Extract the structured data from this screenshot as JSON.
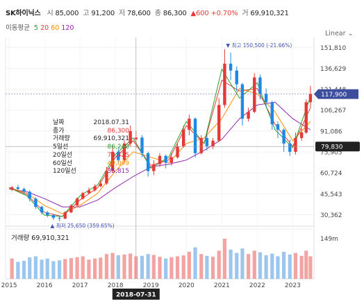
{
  "header": {
    "name": "SK하이닉스",
    "open_label": "시",
    "open": "85,000",
    "high_label": "고",
    "high": "91,200",
    "low_label": "저",
    "low": "78,600",
    "close_label": "종",
    "close": "86,300",
    "change": "▲600",
    "change_pct": "+0.70%",
    "volume_label": "거",
    "volume": "69,910,321"
  },
  "ma": {
    "label": "이동평균",
    "items": [
      {
        "label": "5",
        "color": "#2ca02c"
      },
      {
        "label": "20",
        "color": "#e53935"
      },
      {
        "label": "60",
        "color": "#fb8c00"
      },
      {
        "label": "120",
        "color": "#8e24aa"
      }
    ]
  },
  "scale_mode": "Linear",
  "tooltip": {
    "rows": [
      {
        "label": "날짜",
        "value": "2018.07.31",
        "color": "#222222"
      },
      {
        "label": "종가",
        "value": "86,300",
        "color": "#e53935"
      },
      {
        "label": "거래량",
        "value": "69,910,321",
        "color": "#222222"
      },
      {
        "label": "5일선",
        "value": "86,240",
        "color": "#2ca02c"
      },
      {
        "label": "20일선",
        "value": "70,425",
        "color": "#e53935"
      },
      {
        "label": "60일선",
        "value": "49,099",
        "color": "#fb8c00"
      },
      {
        "label": "120일선",
        "value": "35,815",
        "color": "#8e24aa"
      }
    ]
  },
  "volume_panel": {
    "label": "거래량",
    "value": "69,910,321"
  },
  "colors": {
    "up": "#e53935",
    "down": "#1e88e5",
    "ma5": "#2ca02c",
    "ma20": "#e53935",
    "ma60": "#fb8c00",
    "ma120": "#8e24aa"
  },
  "chart_data": {
    "type": "candlestick",
    "price_axis_ticks": [
      151810,
      136629,
      121448,
      106267,
      91086,
      75905,
      60724,
      45543,
      30362
    ],
    "price_axis_labels": [
      "151,810",
      "136,629",
      "121,448",
      "106,267",
      "91,086",
      "75,905",
      "60,724",
      "45,543",
      "30,362"
    ],
    "ylim": [
      22000,
      158000
    ],
    "x_labels": [
      "2015",
      "2016",
      "2017",
      "2018",
      "2019",
      "2020",
      "2021",
      "2022",
      "2023"
    ],
    "xlim": [
      2014.9,
      2023.6
    ],
    "current_price": {
      "value": 117900,
      "label": "117,900"
    },
    "crosshair": {
      "value": 79830,
      "label": "79,830",
      "date": "2018-07-31",
      "x": 2018.58
    },
    "high_marker": {
      "label": "▼ 최고 150,500 (-21.66%)",
      "x": 2021.12,
      "value": 150500
    },
    "low_marker": {
      "label": "▲ 최저 25,650 (359.65%)",
      "x": 2016.4,
      "value": 25650
    },
    "volume_axis_label": "149m",
    "volume_max": 149,
    "candles": [
      {
        "t": 2015.08,
        "o": 48600,
        "c": 50200,
        "h": 51200,
        "l": 47500
      },
      {
        "t": 2015.25,
        "o": 50200,
        "c": 49000,
        "h": 52000,
        "l": 48000
      },
      {
        "t": 2015.42,
        "o": 49000,
        "c": 47000,
        "h": 50000,
        "l": 45000
      },
      {
        "t": 2015.58,
        "o": 47000,
        "c": 42000,
        "h": 48000,
        "l": 40000
      },
      {
        "t": 2015.75,
        "o": 42000,
        "c": 36000,
        "h": 43000,
        "l": 34500
      },
      {
        "t": 2015.92,
        "o": 36000,
        "c": 32000,
        "h": 37000,
        "l": 30500
      },
      {
        "t": 2016.08,
        "o": 32000,
        "c": 30000,
        "h": 33000,
        "l": 28500
      },
      {
        "t": 2016.25,
        "o": 30000,
        "c": 28000,
        "h": 31000,
        "l": 26500
      },
      {
        "t": 2016.42,
        "o": 28000,
        "c": 27500,
        "h": 29500,
        "l": 25650
      },
      {
        "t": 2016.58,
        "o": 27500,
        "c": 32000,
        "h": 33000,
        "l": 27000
      },
      {
        "t": 2016.75,
        "o": 32000,
        "c": 37000,
        "h": 38000,
        "l": 31500
      },
      {
        "t": 2016.92,
        "o": 37000,
        "c": 42000,
        "h": 43000,
        "l": 36000
      },
      {
        "t": 2017.08,
        "o": 42000,
        "c": 46000,
        "h": 47000,
        "l": 41000
      },
      {
        "t": 2017.25,
        "o": 46000,
        "c": 48000,
        "h": 50000,
        "l": 45000
      },
      {
        "t": 2017.42,
        "o": 48000,
        "c": 51000,
        "h": 52500,
        "l": 47000
      },
      {
        "t": 2017.58,
        "o": 51000,
        "c": 53000,
        "h": 55000,
        "l": 50000
      },
      {
        "t": 2017.75,
        "o": 53000,
        "c": 62000,
        "h": 65000,
        "l": 52000
      },
      {
        "t": 2017.92,
        "o": 62000,
        "c": 76000,
        "h": 80000,
        "l": 61000
      },
      {
        "t": 2018.08,
        "o": 76000,
        "c": 70000,
        "h": 78000,
        "l": 68000
      },
      {
        "t": 2018.25,
        "o": 70000,
        "c": 82000,
        "h": 84000,
        "l": 69000
      },
      {
        "t": 2018.42,
        "o": 82000,
        "c": 91000,
        "h": 95000,
        "l": 80000
      },
      {
        "t": 2018.58,
        "o": 85000,
        "c": 86300,
        "h": 91200,
        "l": 78600
      },
      {
        "t": 2018.75,
        "o": 86300,
        "c": 75000,
        "h": 88000,
        "l": 72000
      },
      {
        "t": 2018.92,
        "o": 75000,
        "c": 62000,
        "h": 76000,
        "l": 58000
      },
      {
        "t": 2019.08,
        "o": 62000,
        "c": 67000,
        "h": 70000,
        "l": 59000
      },
      {
        "t": 2019.25,
        "o": 67000,
        "c": 73000,
        "h": 75000,
        "l": 65000
      },
      {
        "t": 2019.42,
        "o": 73000,
        "c": 68000,
        "h": 74000,
        "l": 64000
      },
      {
        "t": 2019.58,
        "o": 68000,
        "c": 72000,
        "h": 75000,
        "l": 66000
      },
      {
        "t": 2019.75,
        "o": 72000,
        "c": 80000,
        "h": 82000,
        "l": 71000
      },
      {
        "t": 2019.92,
        "o": 80000,
        "c": 92000,
        "h": 95000,
        "l": 79000
      },
      {
        "t": 2020.08,
        "o": 92000,
        "c": 100000,
        "h": 103000,
        "l": 88000
      },
      {
        "t": 2020.25,
        "o": 100000,
        "c": 75000,
        "h": 101000,
        "l": 72000
      },
      {
        "t": 2020.42,
        "o": 75000,
        "c": 86000,
        "h": 88000,
        "l": 74000
      },
      {
        "t": 2020.58,
        "o": 86000,
        "c": 80000,
        "h": 88000,
        "l": 77000
      },
      {
        "t": 2020.75,
        "o": 80000,
        "c": 84000,
        "h": 86000,
        "l": 78000
      },
      {
        "t": 2020.92,
        "o": 84000,
        "c": 110000,
        "h": 115000,
        "l": 83000
      },
      {
        "t": 2021.08,
        "o": 110000,
        "c": 140000,
        "h": 150500,
        "l": 108000
      },
      {
        "t": 2021.25,
        "o": 140000,
        "c": 135000,
        "h": 148000,
        "l": 128000
      },
      {
        "t": 2021.42,
        "o": 135000,
        "c": 125000,
        "h": 138000,
        "l": 120000
      },
      {
        "t": 2021.58,
        "o": 125000,
        "c": 100000,
        "h": 126000,
        "l": 95000
      },
      {
        "t": 2021.75,
        "o": 100000,
        "c": 105000,
        "h": 108000,
        "l": 98000
      },
      {
        "t": 2021.92,
        "o": 105000,
        "c": 130000,
        "h": 133000,
        "l": 104000
      },
      {
        "t": 2022.08,
        "o": 130000,
        "c": 118000,
        "h": 132000,
        "l": 114000
      },
      {
        "t": 2022.25,
        "o": 118000,
        "c": 112000,
        "h": 122000,
        "l": 108000
      },
      {
        "t": 2022.42,
        "o": 112000,
        "c": 96000,
        "h": 113000,
        "l": 92000
      },
      {
        "t": 2022.58,
        "o": 96000,
        "c": 92000,
        "h": 98000,
        "l": 86000
      },
      {
        "t": 2022.75,
        "o": 92000,
        "c": 82000,
        "h": 93000,
        "l": 76000
      },
      {
        "t": 2022.92,
        "o": 82000,
        "c": 76000,
        "h": 85000,
        "l": 73000
      },
      {
        "t": 2023.08,
        "o": 76000,
        "c": 86000,
        "h": 90000,
        "l": 74000
      },
      {
        "t": 2023.25,
        "o": 86000,
        "c": 90000,
        "h": 93000,
        "l": 84000
      },
      {
        "t": 2023.38,
        "o": 90000,
        "c": 112000,
        "h": 114000,
        "l": 89000
      },
      {
        "t": 2023.5,
        "o": 112000,
        "c": 117900,
        "h": 124000,
        "l": 108000
      }
    ],
    "ma120": [
      [
        2015.0,
        49000
      ],
      [
        2015.5,
        47000
      ],
      [
        2016.0,
        42000
      ],
      [
        2016.5,
        36000
      ],
      [
        2017.0,
        36000
      ],
      [
        2017.5,
        41000
      ],
      [
        2018.0,
        50000
      ],
      [
        2018.5,
        58000
      ],
      [
        2019.0,
        65000
      ],
      [
        2019.5,
        67000
      ],
      [
        2020.0,
        70000
      ],
      [
        2020.5,
        77000
      ],
      [
        2021.0,
        85000
      ],
      [
        2021.5,
        100000
      ],
      [
        2022.0,
        110000
      ],
      [
        2022.5,
        112000
      ],
      [
        2023.0,
        100000
      ],
      [
        2023.5,
        92000
      ]
    ],
    "ma60": [
      [
        2015.0,
        50000
      ],
      [
        2015.5,
        46000
      ],
      [
        2016.0,
        37000
      ],
      [
        2016.5,
        31000
      ],
      [
        2017.0,
        37000
      ],
      [
        2017.5,
        46000
      ],
      [
        2018.0,
        62000
      ],
      [
        2018.5,
        76000
      ],
      [
        2019.0,
        72000
      ],
      [
        2019.5,
        68000
      ],
      [
        2020.0,
        82000
      ],
      [
        2020.5,
        86000
      ],
      [
        2021.0,
        100000
      ],
      [
        2021.5,
        122000
      ],
      [
        2022.0,
        118000
      ],
      [
        2022.5,
        105000
      ],
      [
        2023.0,
        84000
      ],
      [
        2023.5,
        98000
      ]
    ],
    "ma20": [
      [
        2015.0,
        50000
      ],
      [
        2015.5,
        45000
      ],
      [
        2016.0,
        32000
      ],
      [
        2016.5,
        29000
      ],
      [
        2017.0,
        41000
      ],
      [
        2017.5,
        50000
      ],
      [
        2018.0,
        72000
      ],
      [
        2018.5,
        84000
      ],
      [
        2019.0,
        66000
      ],
      [
        2019.5,
        70000
      ],
      [
        2020.0,
        95000
      ],
      [
        2020.5,
        82000
      ],
      [
        2021.0,
        128000
      ],
      [
        2021.5,
        120000
      ],
      [
        2022.0,
        122000
      ],
      [
        2022.5,
        96000
      ],
      [
        2023.0,
        80000
      ],
      [
        2023.5,
        108000
      ]
    ],
    "ma5": [
      [
        2015.0,
        50000
      ],
      [
        2015.5,
        44000
      ],
      [
        2016.0,
        30000
      ],
      [
        2016.5,
        29000
      ],
      [
        2017.0,
        44000
      ],
      [
        2017.5,
        52000
      ],
      [
        2018.0,
        74000
      ],
      [
        2018.5,
        86000
      ],
      [
        2019.0,
        64000
      ],
      [
        2019.5,
        72000
      ],
      [
        2020.0,
        98000
      ],
      [
        2020.5,
        82000
      ],
      [
        2021.0,
        136000
      ],
      [
        2021.5,
        115000
      ],
      [
        2022.0,
        126000
      ],
      [
        2022.5,
        92000
      ],
      [
        2023.0,
        79000
      ],
      [
        2023.5,
        116000
      ]
    ],
    "volumes": [
      {
        "t": 2015.08,
        "v": 60,
        "up": true
      },
      {
        "t": 2015.25,
        "v": 45,
        "up": false
      },
      {
        "t": 2015.42,
        "v": 50,
        "up": false
      },
      {
        "t": 2015.58,
        "v": 65,
        "up": false
      },
      {
        "t": 2015.75,
        "v": 70,
        "up": false
      },
      {
        "t": 2015.92,
        "v": 55,
        "up": false
      },
      {
        "t": 2016.08,
        "v": 60,
        "up": false
      },
      {
        "t": 2016.25,
        "v": 48,
        "up": false
      },
      {
        "t": 2016.42,
        "v": 52,
        "up": false
      },
      {
        "t": 2016.58,
        "v": 58,
        "up": true
      },
      {
        "t": 2016.75,
        "v": 62,
        "up": true
      },
      {
        "t": 2016.92,
        "v": 66,
        "up": true
      },
      {
        "t": 2017.08,
        "v": 70,
        "up": true
      },
      {
        "t": 2017.25,
        "v": 55,
        "up": true
      },
      {
        "t": 2017.42,
        "v": 60,
        "up": true
      },
      {
        "t": 2017.58,
        "v": 64,
        "up": true
      },
      {
        "t": 2017.75,
        "v": 80,
        "up": true
      },
      {
        "t": 2017.92,
        "v": 85,
        "up": true
      },
      {
        "t": 2018.08,
        "v": 75,
        "up": false
      },
      {
        "t": 2018.25,
        "v": 78,
        "up": true
      },
      {
        "t": 2018.42,
        "v": 82,
        "up": true
      },
      {
        "t": 2018.58,
        "v": 70,
        "up": true
      },
      {
        "t": 2018.75,
        "v": 72,
        "up": false
      },
      {
        "t": 2018.92,
        "v": 80,
        "up": false
      },
      {
        "t": 2019.08,
        "v": 76,
        "up": true
      },
      {
        "t": 2019.25,
        "v": 68,
        "up": true
      },
      {
        "t": 2019.42,
        "v": 60,
        "up": false
      },
      {
        "t": 2019.58,
        "v": 66,
        "up": true
      },
      {
        "t": 2019.75,
        "v": 70,
        "up": true
      },
      {
        "t": 2019.92,
        "v": 74,
        "up": true
      },
      {
        "t": 2020.08,
        "v": 90,
        "up": true
      },
      {
        "t": 2020.25,
        "v": 110,
        "up": false
      },
      {
        "t": 2020.42,
        "v": 80,
        "up": true
      },
      {
        "t": 2020.58,
        "v": 72,
        "up": false
      },
      {
        "t": 2020.75,
        "v": 68,
        "up": true
      },
      {
        "t": 2020.92,
        "v": 95,
        "up": true
      },
      {
        "t": 2021.08,
        "v": 149,
        "up": true
      },
      {
        "t": 2021.25,
        "v": 100,
        "up": false
      },
      {
        "t": 2021.42,
        "v": 85,
        "up": false
      },
      {
        "t": 2021.58,
        "v": 105,
        "up": false
      },
      {
        "t": 2021.75,
        "v": 80,
        "up": true
      },
      {
        "t": 2021.92,
        "v": 95,
        "up": true
      },
      {
        "t": 2022.08,
        "v": 88,
        "up": false
      },
      {
        "t": 2022.25,
        "v": 75,
        "up": false
      },
      {
        "t": 2022.42,
        "v": 82,
        "up": false
      },
      {
        "t": 2022.58,
        "v": 70,
        "up": false
      },
      {
        "t": 2022.75,
        "v": 90,
        "up": false
      },
      {
        "t": 2022.92,
        "v": 78,
        "up": false
      },
      {
        "t": 2023.08,
        "v": 85,
        "up": true
      },
      {
        "t": 2023.25,
        "v": 72,
        "up": true
      },
      {
        "t": 2023.38,
        "v": 95,
        "up": true
      },
      {
        "t": 2023.5,
        "v": 70,
        "up": true
      }
    ]
  }
}
